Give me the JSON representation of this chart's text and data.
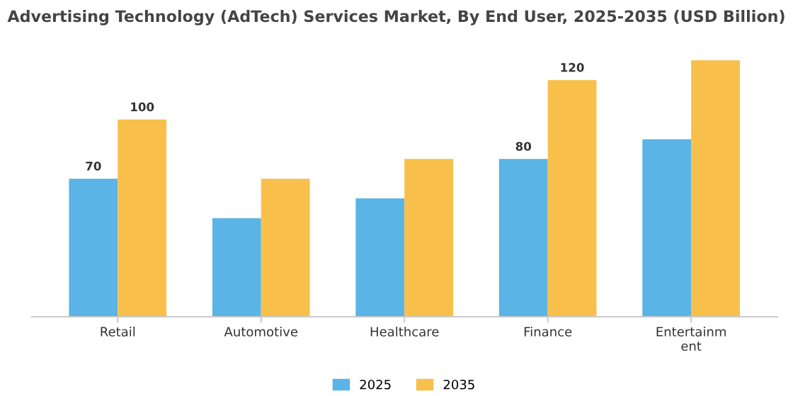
{
  "chart_data": {
    "type": "bar",
    "title": "Advertising Technology (AdTech) Services Market, By End User, 2025-2035 (USD Billion)",
    "categories": [
      "Retail",
      "Automotive",
      "Healthcare",
      "Finance",
      "Entertainment"
    ],
    "series": [
      {
        "name": "2025",
        "color": "#5ab4e5",
        "values": [
          70,
          50,
          60,
          80,
          90
        ],
        "value_labels": [
          "70",
          null,
          null,
          "80",
          null
        ]
      },
      {
        "name": "2035",
        "color": "#f8c04a",
        "values": [
          100,
          70,
          80,
          120,
          130
        ],
        "value_labels": [
          "100",
          null,
          null,
          "120",
          null
        ]
      }
    ],
    "tick_labels": "x",
    "grid": false,
    "legend": "bottom"
  }
}
